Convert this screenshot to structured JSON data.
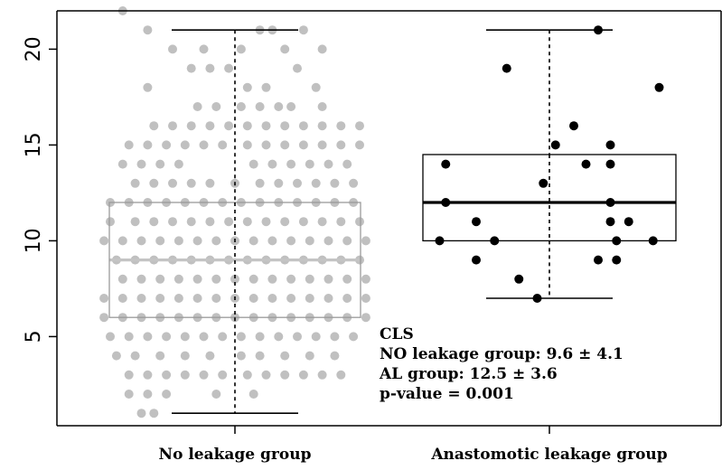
{
  "chart_data": {
    "type": "boxplot",
    "title": "",
    "xlabel": "",
    "ylabel": "",
    "ylim": [
      0,
      22
    ],
    "yticks": [
      5,
      10,
      15,
      20
    ],
    "categories": [
      "No leakage group",
      "Anastomotic leakage group"
    ],
    "series": [
      {
        "name": "No leakage group",
        "color": "#c0c0c0",
        "box": {
          "whisker_low": 1,
          "q1": 6,
          "median": 9,
          "q3": 12,
          "whisker_high": 21
        },
        "points": [
          {
            "y": 22,
            "offsets": [
              -0.9
            ]
          },
          {
            "y": 21,
            "offsets": [
              -0.7,
              0.2,
              0.3,
              0.55
            ]
          },
          {
            "y": 20,
            "offsets": [
              -0.5,
              -0.25,
              0.05,
              0.4,
              0.7
            ]
          },
          {
            "y": 19,
            "offsets": [
              -0.35,
              -0.2,
              -0.05,
              0.5
            ]
          },
          {
            "y": 18,
            "offsets": [
              -0.7,
              0.1,
              0.25,
              0.65
            ]
          },
          {
            "y": 17,
            "offsets": [
              -0.3,
              -0.15,
              0.05,
              0.2,
              0.35,
              0.45,
              0.7
            ]
          },
          {
            "y": 16,
            "offsets": [
              -0.65,
              -0.5,
              -0.35,
              -0.2,
              -0.05,
              0.1,
              0.25,
              0.4,
              0.55,
              0.7,
              0.85,
              1.0
            ]
          },
          {
            "y": 15,
            "offsets": [
              -0.85,
              -0.7,
              -0.55,
              -0.4,
              -0.25,
              -0.1,
              0.1,
              0.25,
              0.4,
              0.55,
              0.7,
              0.85,
              1.0
            ]
          },
          {
            "y": 14,
            "offsets": [
              -0.9,
              -0.75,
              -0.6,
              -0.45,
              0.15,
              0.3,
              0.45,
              0.6,
              0.75,
              0.9
            ]
          },
          {
            "y": 13,
            "offsets": [
              -0.8,
              -0.65,
              -0.5,
              -0.35,
              -0.2,
              0.0,
              0.2,
              0.35,
              0.5,
              0.65,
              0.8,
              0.95
            ]
          },
          {
            "y": 12,
            "offsets": [
              -1.0,
              -0.85,
              -0.7,
              -0.55,
              -0.4,
              -0.25,
              -0.1,
              0.05,
              0.2,
              0.35,
              0.5,
              0.65,
              0.8,
              0.95
            ]
          },
          {
            "y": 11,
            "offsets": [
              -1.0,
              -0.8,
              -0.65,
              -0.5,
              -0.35,
              -0.2,
              -0.05,
              0.1,
              0.25,
              0.4,
              0.55,
              0.7,
              0.85,
              1.0
            ]
          },
          {
            "y": 10,
            "offsets": [
              -1.05,
              -0.9,
              -0.75,
              -0.6,
              -0.45,
              -0.3,
              -0.15,
              0.0,
              0.15,
              0.3,
              0.45,
              0.6,
              0.75,
              0.9,
              1.05
            ]
          },
          {
            "y": 9,
            "offsets": [
              -0.95,
              -0.8,
              -0.65,
              -0.5,
              -0.35,
              -0.2,
              -0.05,
              0.1,
              0.25,
              0.4,
              0.55,
              0.7,
              0.85,
              1.0
            ]
          },
          {
            "y": 8,
            "offsets": [
              -0.9,
              -0.75,
              -0.6,
              -0.45,
              -0.3,
              -0.15,
              0.0,
              0.15,
              0.3,
              0.45,
              0.6,
              0.75,
              0.9,
              1.05
            ]
          },
          {
            "y": 7,
            "offsets": [
              -1.05,
              -0.9,
              -0.75,
              -0.6,
              -0.45,
              -0.3,
              -0.15,
              0.0,
              0.15,
              0.3,
              0.45,
              0.6,
              0.75,
              0.9,
              1.05
            ]
          },
          {
            "y": 6,
            "offsets": [
              -1.05,
              -0.9,
              -0.75,
              -0.6,
              -0.45,
              -0.3,
              -0.15,
              0.0,
              0.15,
              0.3,
              0.45,
              0.6,
              0.75,
              0.9,
              1.05
            ]
          },
          {
            "y": 5,
            "offsets": [
              -1.0,
              -0.85,
              -0.7,
              -0.55,
              -0.4,
              -0.25,
              -0.1,
              0.05,
              0.2,
              0.35,
              0.5,
              0.65,
              0.8,
              0.95
            ]
          },
          {
            "y": 4,
            "offsets": [
              -0.95,
              -0.8,
              -0.6,
              -0.4,
              -0.2,
              0.05,
              0.2,
              0.4,
              0.6,
              0.8
            ]
          },
          {
            "y": 3,
            "offsets": [
              -0.85,
              -0.7,
              -0.55,
              -0.4,
              -0.25,
              -0.1,
              0.1,
              0.25,
              0.4,
              0.55,
              0.7,
              0.85
            ]
          },
          {
            "y": 2,
            "offsets": [
              -0.85,
              -0.7,
              -0.55,
              -0.15,
              0.15
            ]
          },
          {
            "y": 1,
            "offsets": [
              -0.75,
              -0.65
            ]
          }
        ]
      },
      {
        "name": "Anastomotic leakage group",
        "color": "#000000",
        "box": {
          "whisker_low": 7,
          "q1": 10,
          "median": 12,
          "q3": 14.5,
          "whisker_high": 21
        },
        "points": [
          {
            "y": 21,
            "offsets": [
              0.4
            ]
          },
          {
            "y": 19,
            "offsets": [
              -0.35
            ]
          },
          {
            "y": 18,
            "offsets": [
              0.9
            ]
          },
          {
            "y": 16,
            "offsets": [
              0.2
            ]
          },
          {
            "y": 15,
            "offsets": [
              0.05,
              0.5
            ]
          },
          {
            "y": 14,
            "offsets": [
              -0.85,
              0.3,
              0.5
            ]
          },
          {
            "y": 13,
            "offsets": [
              -0.05
            ]
          },
          {
            "y": 12,
            "offsets": [
              -0.85,
              0.5
            ]
          },
          {
            "y": 11,
            "offsets": [
              -0.6,
              0.5,
              0.65
            ]
          },
          {
            "y": 10,
            "offsets": [
              -0.9,
              -0.45,
              0.55,
              0.85
            ]
          },
          {
            "y": 9,
            "offsets": [
              -0.6,
              0.4,
              0.55
            ]
          },
          {
            "y": 8,
            "offsets": [
              -0.25
            ]
          },
          {
            "y": 7,
            "offsets": [
              -0.1
            ]
          }
        ]
      }
    ],
    "annotation": [
      "CLS",
      "NO leakage group: 9.6 ± 4.1",
      "AL group: 12.5 ± 3.6",
      "p-value = 0.001"
    ]
  }
}
